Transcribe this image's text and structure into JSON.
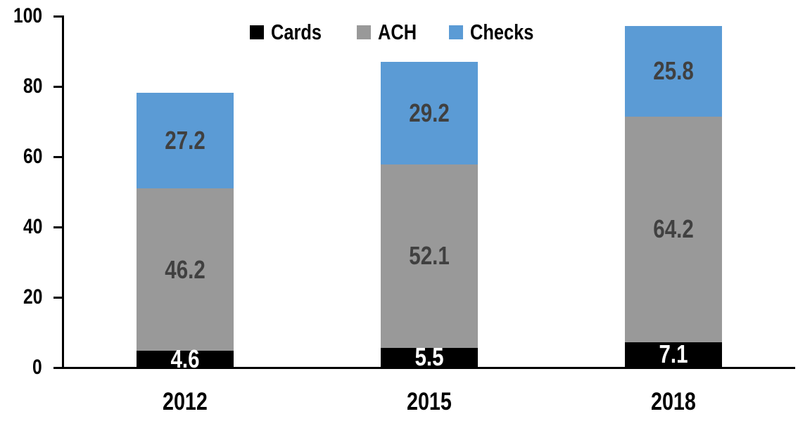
{
  "chart_data": {
    "type": "bar",
    "stacked": true,
    "title": "",
    "xlabel": "",
    "ylabel": "",
    "categories": [
      "2012",
      "2015",
      "2018"
    ],
    "series": [
      {
        "name": "Cards",
        "color": "#000000",
        "label_color": "#ffffff",
        "values": [
          4.6,
          5.5,
          7.1
        ]
      },
      {
        "name": "ACH",
        "color": "#999999",
        "label_color": "#404040",
        "values": [
          46.2,
          52.1,
          64.2
        ]
      },
      {
        "name": "Checks",
        "color": "#5B9BD5",
        "label_color": "#404040",
        "values": [
          27.2,
          29.2,
          25.8
        ]
      }
    ],
    "yticks": [
      0,
      20,
      40,
      60,
      80,
      100
    ],
    "ylim": [
      0,
      100
    ],
    "legend_position": "top",
    "grid": false,
    "axis_color": "#000000",
    "background": "#ffffff"
  }
}
